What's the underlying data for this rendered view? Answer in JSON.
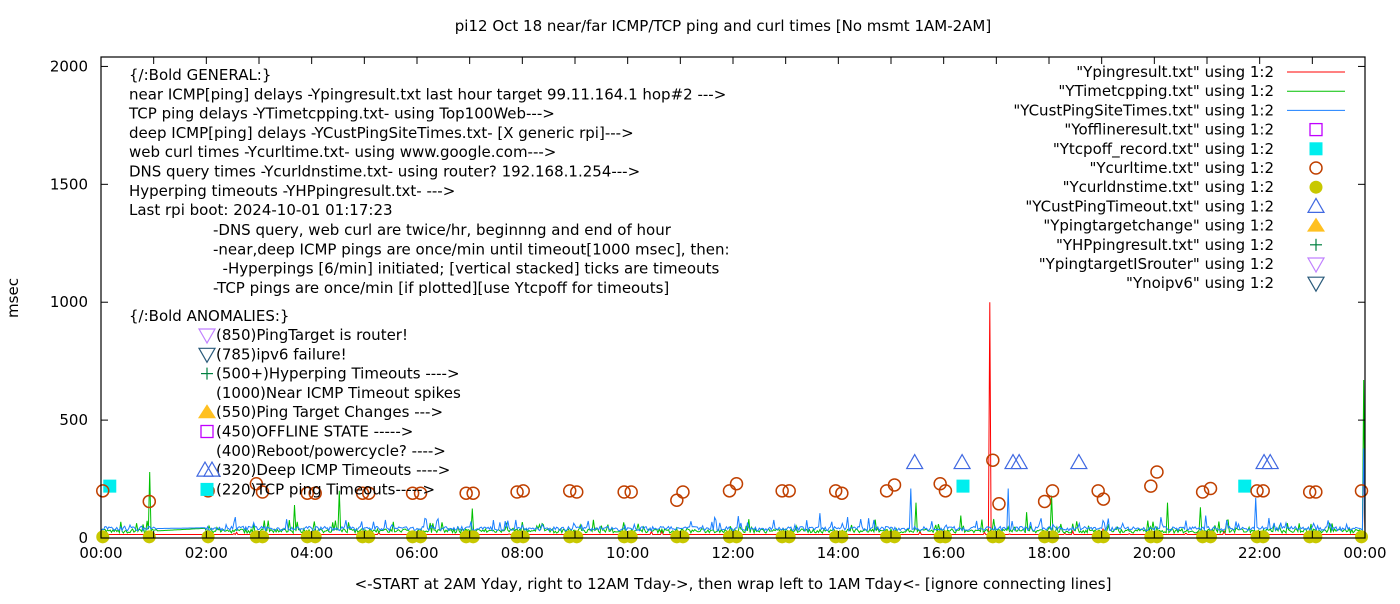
{
  "chart_data": {
    "type": "line",
    "title": "pi12 Oct 18  near/far ICMP/TCP ping and curl times [No msmt 1AM-2AM]",
    "xlabel": "<-START at 2AM Yday, right to 12AM Tday->, then wrap left to 1AM Tday<- [ignore connecting lines]",
    "ylabel": "msec",
    "xlim": [
      "00:00",
      "24:00"
    ],
    "ylim": [
      0,
      2040
    ],
    "x_ticks": [
      "00:00",
      "02:00",
      "04:00",
      "06:00",
      "08:00",
      "10:00",
      "12:00",
      "14:00",
      "16:00",
      "18:00",
      "20:00",
      "22:00",
      "00:00"
    ],
    "y_ticks": [
      "0",
      "500",
      "1000",
      "1500",
      "2000"
    ],
    "y_tick_values": [
      0,
      500,
      1000,
      1500,
      2000
    ],
    "grid": false,
    "legend_position": "top-right",
    "annotations": {
      "general": [
        "{/:Bold GENERAL:}",
        "near ICMP[ping] delays -Ypingresult.txt last hour target 99.11.164.1 hop#2 --->",
        "TCP ping delays -YTimetcpping.txt- using Top100Web--->",
        "deep ICMP[ping] delays -YCustPingSiteTimes.txt- [X generic rpi]--->",
        "web curl times -Ycurltime.txt- using www.google.com--->",
        "DNS query times -Ycurldnstime.txt- using router? 192.168.1.254--->",
        "Hyperping timeouts -YHPpingresult.txt- --->",
        "Last rpi boot: 2024-10-01 01:17:23"
      ],
      "notes": [
        "-DNS query, web curl are twice/hr, beginnng and end of hour",
        "-near,deep ICMP pings are once/min until timeout[1000 msec], then:",
        "  -Hyperpings [6/min] initiated; [vertical stacked] ticks are timeouts",
        "-TCP pings are once/min [if plotted][use Ytcpoff for timeouts]"
      ],
      "anomalies_title": "{/:Bold ANOMALIES:}",
      "anomalies": [
        {
          "text": "(850)PingTarget is router!",
          "marker": "tri-down-lavender"
        },
        {
          "text": "(785)ipv6 failure!",
          "marker": "tri-down-navy"
        },
        {
          "text": "(500+)Hyperping Timeouts ---->",
          "marker": "plus"
        },
        {
          "text": "(1000)Near ICMP Timeout spikes",
          "marker": ""
        },
        {
          "text": "(550)Ping Target Changes --->",
          "marker": "tri-up-filled"
        },
        {
          "text": "(450)OFFLINE STATE ----->",
          "marker": "square-open"
        },
        {
          "text": "(400)Reboot/powercycle? ---->",
          "marker": ""
        },
        {
          "text": "(320)Deep ICMP Timeouts ---->",
          "marker": "tri-up-double"
        },
        {
          "text": "(220)TCP ping Timeouts----->",
          "marker": "square-filled"
        }
      ]
    },
    "series": [
      {
        "name": "\"Ypingresult.txt\" using 1:2",
        "style": "line",
        "color": "#ff0000",
        "baseline": 15,
        "spikes": [
          [
            "16:53",
            1000
          ],
          [
            "23:58",
            360
          ],
          [
            "19:02",
            40
          ],
          [
            "21:20",
            30
          ]
        ]
      },
      {
        "name": "\"YTimetcpping.txt\" using 1:2",
        "style": "line",
        "color": "#00c000",
        "baseline": 30,
        "spikes": [
          [
            "00:55",
            280
          ],
          [
            "04:32",
            200
          ],
          [
            "03:41",
            140
          ],
          [
            "07:03",
            125
          ],
          [
            "15:28",
            150
          ],
          [
            "16:20",
            95
          ],
          [
            "17:35",
            110
          ],
          [
            "18:03",
            180
          ],
          [
            "20:15",
            150
          ],
          [
            "20:52",
            130
          ],
          [
            "23:59",
            670
          ]
        ]
      },
      {
        "name": "\"YCustPingSiteTimes.txt\" using 1:2",
        "style": "line",
        "color": "#1a7fff",
        "baseline": 40,
        "spikes": [
          [
            "15:22",
            210
          ],
          [
            "17:13",
            210
          ],
          [
            "21:55",
            170
          ],
          [
            "20:58",
            95
          ],
          [
            "13:39",
            105
          ],
          [
            "23:59",
            380
          ]
        ]
      },
      {
        "name": "\"Yofflineresult.txt\" using 1:2",
        "style": "square-open",
        "color": "#c000ff",
        "points": []
      },
      {
        "name": "\"Ytcpoff_record.txt\" using 1:2",
        "style": "square-filled",
        "color": "#00eeee",
        "points": [
          [
            "00:10",
            220
          ],
          [
            "16:22",
            220
          ],
          [
            "21:43",
            220
          ]
        ]
      },
      {
        "name": "\"Ycurltime.txt\" using 1:2",
        "style": "circle-open",
        "color": "#c04000",
        "points": [
          [
            "00:02",
            200
          ],
          [
            "00:55",
            155
          ],
          [
            "02:02",
            200
          ],
          [
            "02:57",
            230
          ],
          [
            "03:04",
            195
          ],
          [
            "03:55",
            190
          ],
          [
            "04:04",
            190
          ],
          [
            "04:58",
            190
          ],
          [
            "05:05",
            190
          ],
          [
            "05:55",
            190
          ],
          [
            "06:04",
            190
          ],
          [
            "06:56",
            190
          ],
          [
            "07:04",
            190
          ],
          [
            "07:54",
            195
          ],
          [
            "08:01",
            200
          ],
          [
            "08:54",
            200
          ],
          [
            "09:02",
            195
          ],
          [
            "09:56",
            195
          ],
          [
            "10:04",
            195
          ],
          [
            "10:56",
            160
          ],
          [
            "11:03",
            195
          ],
          [
            "11:56",
            200
          ],
          [
            "12:04",
            230
          ],
          [
            "12:56",
            200
          ],
          [
            "13:04",
            200
          ],
          [
            "13:57",
            200
          ],
          [
            "14:04",
            190
          ],
          [
            "14:55",
            200
          ],
          [
            "15:04",
            225
          ],
          [
            "15:56",
            230
          ],
          [
            "16:02",
            200
          ],
          [
            "16:56",
            330
          ],
          [
            "17:03",
            145
          ],
          [
            "17:55",
            155
          ],
          [
            "18:04",
            200
          ],
          [
            "18:56",
            200
          ],
          [
            "19:02",
            165
          ],
          [
            "19:56",
            220
          ],
          [
            "20:03",
            280
          ],
          [
            "20:55",
            195
          ],
          [
            "21:04",
            210
          ],
          [
            "21:57",
            200
          ],
          [
            "22:04",
            200
          ],
          [
            "22:57",
            195
          ],
          [
            "23:04",
            195
          ],
          [
            "23:56",
            200
          ]
        ]
      },
      {
        "name": "\"Ycurldnstime.txt\" using 1:2",
        "style": "circle-filled",
        "color": "#c8c800",
        "points": [
          [
            "00:02",
            5
          ],
          [
            "00:55",
            5
          ],
          [
            "02:02",
            5
          ],
          [
            "02:57",
            5
          ],
          [
            "03:04",
            5
          ],
          [
            "03:55",
            5
          ],
          [
            "04:04",
            5
          ],
          [
            "04:58",
            5
          ],
          [
            "05:05",
            5
          ],
          [
            "05:55",
            5
          ],
          [
            "06:04",
            5
          ],
          [
            "06:56",
            5
          ],
          [
            "07:04",
            5
          ],
          [
            "07:54",
            5
          ],
          [
            "08:01",
            5
          ],
          [
            "08:54",
            5
          ],
          [
            "09:02",
            5
          ],
          [
            "09:56",
            5
          ],
          [
            "10:04",
            5
          ],
          [
            "10:56",
            5
          ],
          [
            "11:03",
            5
          ],
          [
            "11:56",
            5
          ],
          [
            "12:04",
            5
          ],
          [
            "12:56",
            5
          ],
          [
            "13:04",
            5
          ],
          [
            "13:57",
            5
          ],
          [
            "14:04",
            5
          ],
          [
            "14:55",
            5
          ],
          [
            "15:04",
            5
          ],
          [
            "15:56",
            5
          ],
          [
            "16:02",
            5
          ],
          [
            "16:56",
            5
          ],
          [
            "17:03",
            5
          ],
          [
            "17:55",
            5
          ],
          [
            "18:04",
            5
          ],
          [
            "18:56",
            5
          ],
          [
            "19:02",
            5
          ],
          [
            "19:56",
            5
          ],
          [
            "20:03",
            5
          ],
          [
            "20:55",
            5
          ],
          [
            "21:04",
            5
          ],
          [
            "21:57",
            5
          ],
          [
            "22:04",
            5
          ],
          [
            "22:57",
            5
          ],
          [
            "23:04",
            5
          ],
          [
            "23:56",
            5
          ]
        ]
      },
      {
        "name": "\"YCustPingTimeout.txt\" using 1:2",
        "style": "tri-up-open",
        "color": "#4169e1",
        "points": [
          [
            "15:27",
            320
          ],
          [
            "16:21",
            320
          ],
          [
            "17:19",
            320
          ],
          [
            "17:26",
            320
          ],
          [
            "18:34",
            320
          ],
          [
            "22:05",
            320
          ],
          [
            "22:12",
            320
          ]
        ]
      },
      {
        "name": "\"Ypingtargetchange\" using 1:2",
        "style": "tri-up-filled",
        "color": "#ffc020",
        "points": []
      },
      {
        "name": "\"YHPpingresult.txt\" using 1:2",
        "style": "plus",
        "color": "#008040",
        "points": []
      },
      {
        "name": "\"YpingtargetISrouter\" using 1:2",
        "style": "tri-down-open",
        "color": "#c080ff",
        "points": []
      },
      {
        "name": "\"Ynoipv6\" using 1:2",
        "style": "tri-down-open",
        "color": "#2a5a7a",
        "points": []
      }
    ]
  }
}
